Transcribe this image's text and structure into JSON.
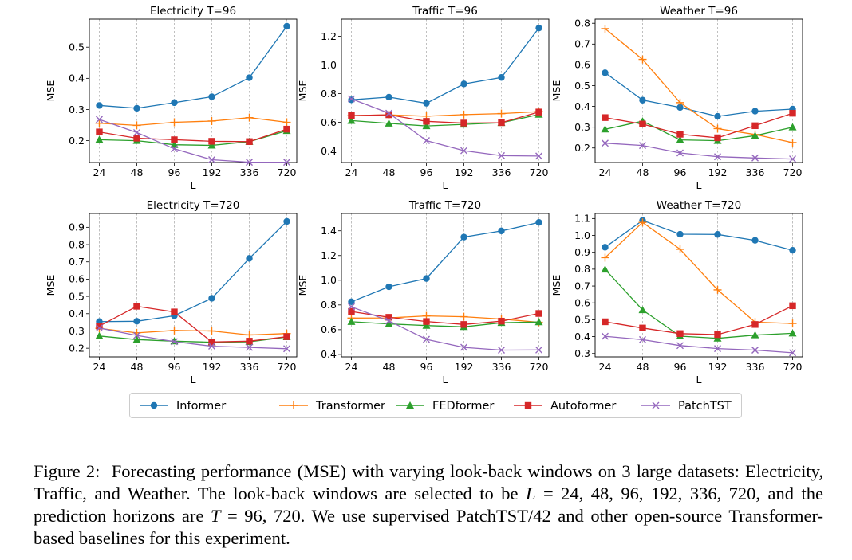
{
  "legend": [
    {
      "name": "Informer",
      "color": "#1f77b4",
      "marker": "circle"
    },
    {
      "name": "Transformer",
      "color": "#ff7f0e",
      "marker": "plus"
    },
    {
      "name": "FEDformer",
      "color": "#2ca02c",
      "marker": "triangle"
    },
    {
      "name": "Autoformer",
      "color": "#d62728",
      "marker": "square"
    },
    {
      "name": "PatchTST",
      "color": "#9467bd",
      "marker": "x"
    }
  ],
  "caption": {
    "label": "Figure 2:",
    "text1": "Forecasting performance (MSE) with varying look-back windows on 3 large datasets: Electricity, Traffic, and Weather. The look-back windows are selected to be ",
    "math1": "L",
    "text2": " = 24, 48, 96, 192, 336, 720, and the prediction horizons are ",
    "math2": "T",
    "text3": " = 96, 720. We use supervised PatchTST/42 and other open-source Transformer-based baselines for this experiment."
  },
  "chart_data": [
    {
      "type": "line",
      "title": "Electricity T=96",
      "xlabel": "L",
      "ylabel": "MSE",
      "categories": [
        "24",
        "48",
        "96",
        "192",
        "336",
        "720"
      ],
      "ylim": [
        0.13,
        0.59
      ],
      "yticks": [
        0.2,
        0.3,
        0.4,
        0.5
      ],
      "grid": "x",
      "series": [
        {
          "name": "Informer",
          "values": [
            0.313,
            0.304,
            0.322,
            0.341,
            0.402,
            0.567
          ]
        },
        {
          "name": "Transformer",
          "values": [
            0.256,
            0.249,
            0.259,
            0.263,
            0.274,
            0.259
          ]
        },
        {
          "name": "FEDformer",
          "values": [
            0.203,
            0.2,
            0.187,
            0.185,
            0.197,
            0.232
          ]
        },
        {
          "name": "Autoformer",
          "values": [
            0.228,
            0.208,
            0.203,
            0.198,
            0.197,
            0.237
          ]
        },
        {
          "name": "PatchTST",
          "values": [
            0.268,
            0.226,
            0.174,
            0.139,
            0.131,
            0.131
          ]
        }
      ]
    },
    {
      "type": "line",
      "title": "Traffic T=96",
      "xlabel": "L",
      "ylabel": "MSE",
      "categories": [
        "24",
        "48",
        "96",
        "192",
        "336",
        "720"
      ],
      "ylim": [
        0.32,
        1.32
      ],
      "yticks": [
        0.4,
        0.6,
        0.8,
        1.0,
        1.2
      ],
      "grid": "x",
      "series": [
        {
          "name": "Informer",
          "values": [
            0.757,
            0.776,
            0.733,
            0.868,
            0.913,
            1.258
          ]
        },
        {
          "name": "Transformer",
          "values": [
            0.647,
            0.652,
            0.643,
            0.654,
            0.661,
            0.675
          ]
        },
        {
          "name": "FEDformer",
          "values": [
            0.612,
            0.593,
            0.575,
            0.586,
            0.597,
            0.655
          ]
        },
        {
          "name": "Autoformer",
          "values": [
            0.647,
            0.653,
            0.607,
            0.595,
            0.598,
            0.672
          ]
        },
        {
          "name": "PatchTST",
          "values": [
            0.764,
            0.664,
            0.473,
            0.403,
            0.368,
            0.365
          ]
        }
      ]
    },
    {
      "type": "line",
      "title": "Weather T=96",
      "xlabel": "L",
      "ylabel": "MSE",
      "categories": [
        "24",
        "48",
        "96",
        "192",
        "336",
        "720"
      ],
      "ylim": [
        0.13,
        0.82
      ],
      "yticks": [
        0.2,
        0.3,
        0.4,
        0.5,
        0.6,
        0.7,
        0.8
      ],
      "grid": "x",
      "series": [
        {
          "name": "Informer",
          "values": [
            0.562,
            0.43,
            0.395,
            0.352,
            0.377,
            0.387
          ]
        },
        {
          "name": "Transformer",
          "values": [
            0.774,
            0.626,
            0.418,
            0.293,
            0.265,
            0.226
          ]
        },
        {
          "name": "FEDformer",
          "values": [
            0.29,
            0.329,
            0.239,
            0.235,
            0.259,
            0.3
          ]
        },
        {
          "name": "Autoformer",
          "values": [
            0.346,
            0.315,
            0.266,
            0.249,
            0.307,
            0.367
          ]
        },
        {
          "name": "PatchTST",
          "values": [
            0.223,
            0.212,
            0.176,
            0.158,
            0.152,
            0.147
          ]
        }
      ]
    },
    {
      "type": "line",
      "title": "Electricity T=720",
      "xlabel": "L",
      "ylabel": "MSE",
      "categories": [
        "24",
        "48",
        "96",
        "192",
        "336",
        "720"
      ],
      "ylim": [
        0.15,
        0.98
      ],
      "yticks": [
        0.2,
        0.3,
        0.4,
        0.5,
        0.6,
        0.7,
        0.8,
        0.9
      ],
      "grid": "x",
      "series": [
        {
          "name": "Informer",
          "values": [
            0.354,
            0.356,
            0.388,
            0.489,
            0.72,
            0.934
          ]
        },
        {
          "name": "Transformer",
          "values": [
            0.315,
            0.289,
            0.303,
            0.3,
            0.277,
            0.285
          ]
        },
        {
          "name": "FEDformer",
          "values": [
            0.271,
            0.25,
            0.241,
            0.235,
            0.237,
            0.265
          ]
        },
        {
          "name": "Autoformer",
          "values": [
            0.328,
            0.443,
            0.41,
            0.236,
            0.241,
            0.267
          ]
        },
        {
          "name": "PatchTST",
          "values": [
            0.317,
            0.274,
            0.238,
            0.212,
            0.205,
            0.197
          ]
        }
      ]
    },
    {
      "type": "line",
      "title": "Traffic T=720",
      "xlabel": "L",
      "ylabel": "MSE",
      "categories": [
        "24",
        "48",
        "96",
        "192",
        "336",
        "720"
      ],
      "ylim": [
        0.38,
        1.54
      ],
      "yticks": [
        0.4,
        0.6,
        0.8,
        1.0,
        1.2,
        1.4
      ],
      "grid": "x",
      "series": [
        {
          "name": "Informer",
          "values": [
            0.826,
            0.947,
            1.014,
            1.349,
            1.399,
            1.468
          ]
        },
        {
          "name": "Transformer",
          "values": [
            0.694,
            0.695,
            0.711,
            0.705,
            0.686,
            0.66
          ]
        },
        {
          "name": "FEDformer",
          "values": [
            0.664,
            0.647,
            0.633,
            0.623,
            0.656,
            0.662
          ]
        },
        {
          "name": "Autoformer",
          "values": [
            0.747,
            0.7,
            0.666,
            0.642,
            0.669,
            0.731
          ]
        },
        {
          "name": "PatchTST",
          "values": [
            0.785,
            0.671,
            0.522,
            0.457,
            0.435,
            0.436
          ]
        }
      ]
    },
    {
      "type": "line",
      "title": "Weather T=720",
      "xlabel": "L",
      "ylabel": "MSE",
      "categories": [
        "24",
        "48",
        "96",
        "192",
        "336",
        "720"
      ],
      "ylim": [
        0.28,
        1.13
      ],
      "yticks": [
        0.3,
        0.4,
        0.5,
        0.6,
        0.7,
        0.8,
        0.9,
        1.0,
        1.1
      ],
      "grid": "x",
      "series": [
        {
          "name": "Informer",
          "values": [
            0.93,
            1.089,
            1.007,
            1.006,
            0.971,
            0.912
          ]
        },
        {
          "name": "Transformer",
          "values": [
            0.868,
            1.077,
            0.918,
            0.677,
            0.486,
            0.478
          ]
        },
        {
          "name": "FEDformer",
          "values": [
            0.799,
            0.558,
            0.403,
            0.39,
            0.409,
            0.42
          ]
        },
        {
          "name": "Autoformer",
          "values": [
            0.488,
            0.451,
            0.418,
            0.412,
            0.472,
            0.583
          ]
        },
        {
          "name": "PatchTST",
          "values": [
            0.402,
            0.382,
            0.347,
            0.329,
            0.32,
            0.304
          ]
        }
      ]
    }
  ]
}
